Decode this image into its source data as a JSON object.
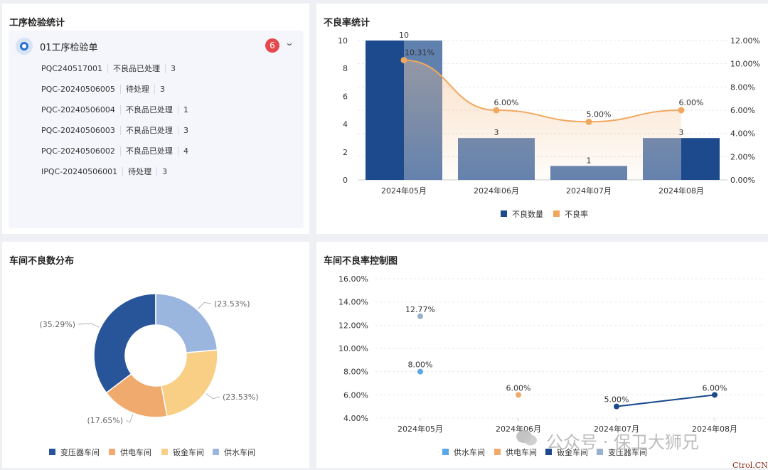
{
  "process_inspection": {
    "title": "工序检验统计",
    "group_title": "01工序检验单",
    "badge_count": "6",
    "rows": [
      {
        "code": "PQC240517001",
        "status": "不良品已处理",
        "qty": "3"
      },
      {
        "code": "PQC-20240506005",
        "status": "待处理",
        "qty": "3"
      },
      {
        "code": "PQC-20240506004",
        "status": "不良品已处理",
        "qty": "1"
      },
      {
        "code": "PQC-20240506003",
        "status": "不良品已处理",
        "qty": "3"
      },
      {
        "code": "PQC-20240506002",
        "status": "不良品已处理",
        "qty": "4"
      },
      {
        "code": "IPQC-20240506001",
        "status": "待处理",
        "qty": "3"
      }
    ]
  },
  "defect_rate_panel": {
    "title": "不良率统计"
  },
  "workshop_dist_panel": {
    "title": "车间不良数分布"
  },
  "control_chart_panel": {
    "title": "车间不良率控制图"
  },
  "watermark": {
    "text": "公众号 · 保卫大狮兄",
    "corner": "Ctrol.CN"
  },
  "chart_data": [
    {
      "type": "bar",
      "categories": [
        "2024年05月",
        "2024年06月",
        "2024年07月",
        "2024年08月"
      ],
      "series": [
        {
          "name": "不良数量",
          "type": "bar",
          "values": [
            10,
            3,
            1,
            3
          ],
          "labels": [
            "10",
            "3",
            "1",
            "3"
          ],
          "color": "#1c4a8c"
        },
        {
          "name": "不良率",
          "type": "line",
          "axis": "right",
          "values": [
            10.31,
            6.0,
            5.0,
            6.0
          ],
          "labels": [
            "10.31%",
            "6.00%",
            "5.00%",
            "6.00%"
          ],
          "color": "#f0a860"
        }
      ],
      "y_left": {
        "min": 0,
        "max": 10,
        "ticks": [
          "0",
          "2",
          "4",
          "6",
          "8",
          "10"
        ]
      },
      "y_right": {
        "min": 0,
        "max": 12,
        "ticks": [
          "0.00%",
          "2.00%",
          "4.00%",
          "6.00%",
          "8.00%",
          "10.00%",
          "12.00%"
        ]
      },
      "legend": "bottom",
      "grid": true
    },
    {
      "type": "pie",
      "donut": true,
      "slices": [
        {
          "name": "变压器车间",
          "value": 35.29,
          "label": "(35.29%)",
          "color": "#28559a"
        },
        {
          "name": "供电车间",
          "value": 17.65,
          "label": "(17.65%)",
          "color": "#f0aa6e"
        },
        {
          "name": "钣金车间",
          "value": 23.53,
          "label": "(23.53%)",
          "color": "#f8cf85"
        },
        {
          "name": "供水车间",
          "value": 23.53,
          "label": "(23.53%)",
          "color": "#9ab5de"
        }
      ],
      "legend": "bottom"
    },
    {
      "type": "scatter",
      "categories": [
        "2024年05月",
        "2024年06月",
        "2024年07月",
        "2024年08月"
      ],
      "series": [
        {
          "name": "供水车间",
          "color": "#5ba6e8",
          "points": [
            {
              "x": "2024年05月",
              "y": 8.0,
              "label": "8.00%"
            }
          ]
        },
        {
          "name": "供电车间",
          "color": "#f0aa6e",
          "points": [
            {
              "x": "2024年06月",
              "y": 6.0,
              "label": "6.00%"
            }
          ]
        },
        {
          "name": "钣金车间",
          "color": "#1c4a8c",
          "line": true,
          "points": [
            {
              "x": "2024年07月",
              "y": 5.0,
              "label": "5.00%"
            },
            {
              "x": "2024年08月",
              "y": 6.0,
              "label": "6.00%"
            }
          ]
        },
        {
          "name": "变压器车间",
          "color": "#9ab0cf",
          "points": [
            {
              "x": "2024年05月",
              "y": 12.77,
              "label": "12.77%"
            }
          ]
        }
      ],
      "y": {
        "min": 4,
        "max": 16,
        "ticks": [
          "4.00%",
          "6.00%",
          "8.00%",
          "10.00%",
          "12.00%",
          "14.00%",
          "16.00%"
        ]
      },
      "legend": "bottom",
      "grid": true
    }
  ]
}
